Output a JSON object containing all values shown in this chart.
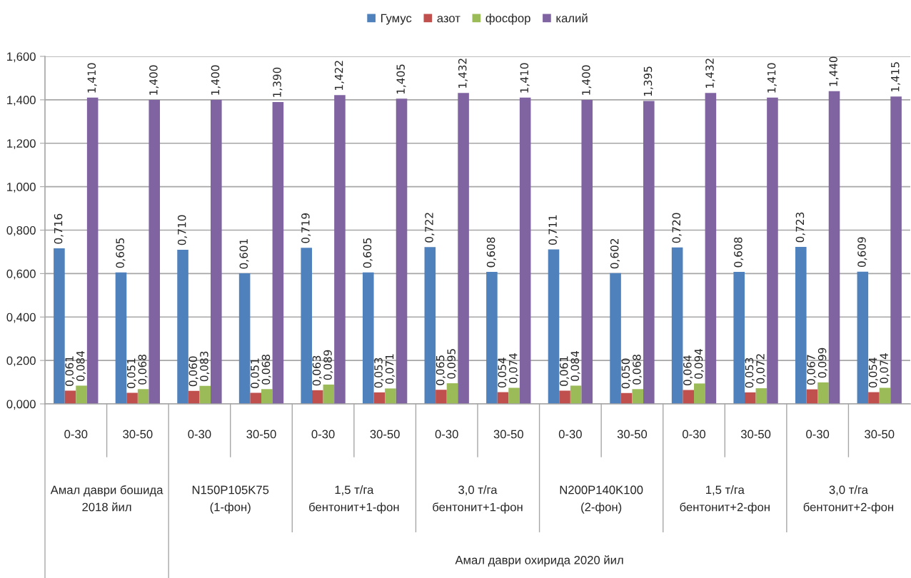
{
  "chart_data": {
    "type": "bar",
    "categories": [
      "0-30",
      "30-50",
      "0-30",
      "30-50",
      "0-30",
      "30-50",
      "0-30",
      "30-50",
      "0-30",
      "30-50",
      "0-30",
      "30-50",
      "0-30",
      "30-50"
    ],
    "series": [
      {
        "name": "Гумус",
        "color": "#4f81bd",
        "values": [
          0.716,
          0.605,
          0.71,
          0.601,
          0.719,
          0.605,
          0.722,
          0.608,
          0.711,
          0.602,
          0.72,
          0.608,
          0.723,
          0.609
        ],
        "value_labels": [
          "0,716",
          "0,605",
          "0,710",
          "0,601",
          "0,719",
          "0,605",
          "0,722",
          "0,608",
          "0,711",
          "0,602",
          "0,720",
          "0,608",
          "0,723",
          "0,609"
        ]
      },
      {
        "name": "азот",
        "color": "#c0504d",
        "values": [
          0.061,
          0.051,
          0.06,
          0.051,
          0.063,
          0.053,
          0.065,
          0.054,
          0.061,
          0.05,
          0.064,
          0.053,
          0.067,
          0.054
        ],
        "value_labels": [
          "0,061",
          "0,051",
          "0,060",
          "0,051",
          "0,063",
          "0,053",
          "0,065",
          "0,054",
          "0,061",
          "0,050",
          "0,064",
          "0,053",
          "0,067",
          "0,054"
        ]
      },
      {
        "name": "фосфор",
        "color": "#9bbb59",
        "values": [
          0.084,
          0.068,
          0.083,
          0.068,
          0.089,
          0.071,
          0.095,
          0.074,
          0.084,
          0.068,
          0.094,
          0.072,
          0.099,
          0.074
        ],
        "value_labels": [
          "0,084",
          "0,068",
          "0,083",
          "0,068",
          "0,089",
          "0,071",
          "0,095",
          "0,074",
          "0,084",
          "0,068",
          "0,094",
          "0,072",
          "0,099",
          "0,074"
        ]
      },
      {
        "name": "калий",
        "color": "#8064a2",
        "values": [
          1.41,
          1.4,
          1.4,
          1.39,
          1.422,
          1.405,
          1.432,
          1.41,
          1.4,
          1.395,
          1.432,
          1.41,
          1.44,
          1.415
        ],
        "value_labels": [
          "1,410",
          "1,400",
          "1,400",
          "1,390",
          "1,422",
          "1,405",
          "1,432",
          "1,410",
          "1,400",
          "1,395",
          "1,432",
          "1,410",
          "1,440",
          "1,415"
        ]
      }
    ],
    "ylim": [
      0,
      1.6
    ],
    "yticks": [
      {
        "value": 0,
        "label": "0,000"
      },
      {
        "value": 0.2,
        "label": "0,200"
      },
      {
        "value": 0.4,
        "label": "0,400"
      },
      {
        "value": 0.6,
        "label": "0,600"
      },
      {
        "value": 0.8,
        "label": "0,800"
      },
      {
        "value": 1.0,
        "label": "1,000"
      },
      {
        "value": 1.2,
        "label": "1,200"
      },
      {
        "value": 1.4,
        "label": "1,400"
      },
      {
        "value": 1.6,
        "label": "1,600"
      }
    ],
    "grid": "y",
    "legend": "top",
    "annotations": [
      "Амал даври бошида\n2018 йил",
      "N150P105K75\n(1-фон)",
      "1,5 т/га\nбентонит+1-фон",
      "3,0 т/га\nбентонит+1-фон",
      "N200P140K100\n(2-фон)",
      "1,5 т/га\nбентонит+2-фон",
      "3,0 т/га\nбентонит+2-фон",
      "Амал даври охирида 2020 йил"
    ]
  }
}
